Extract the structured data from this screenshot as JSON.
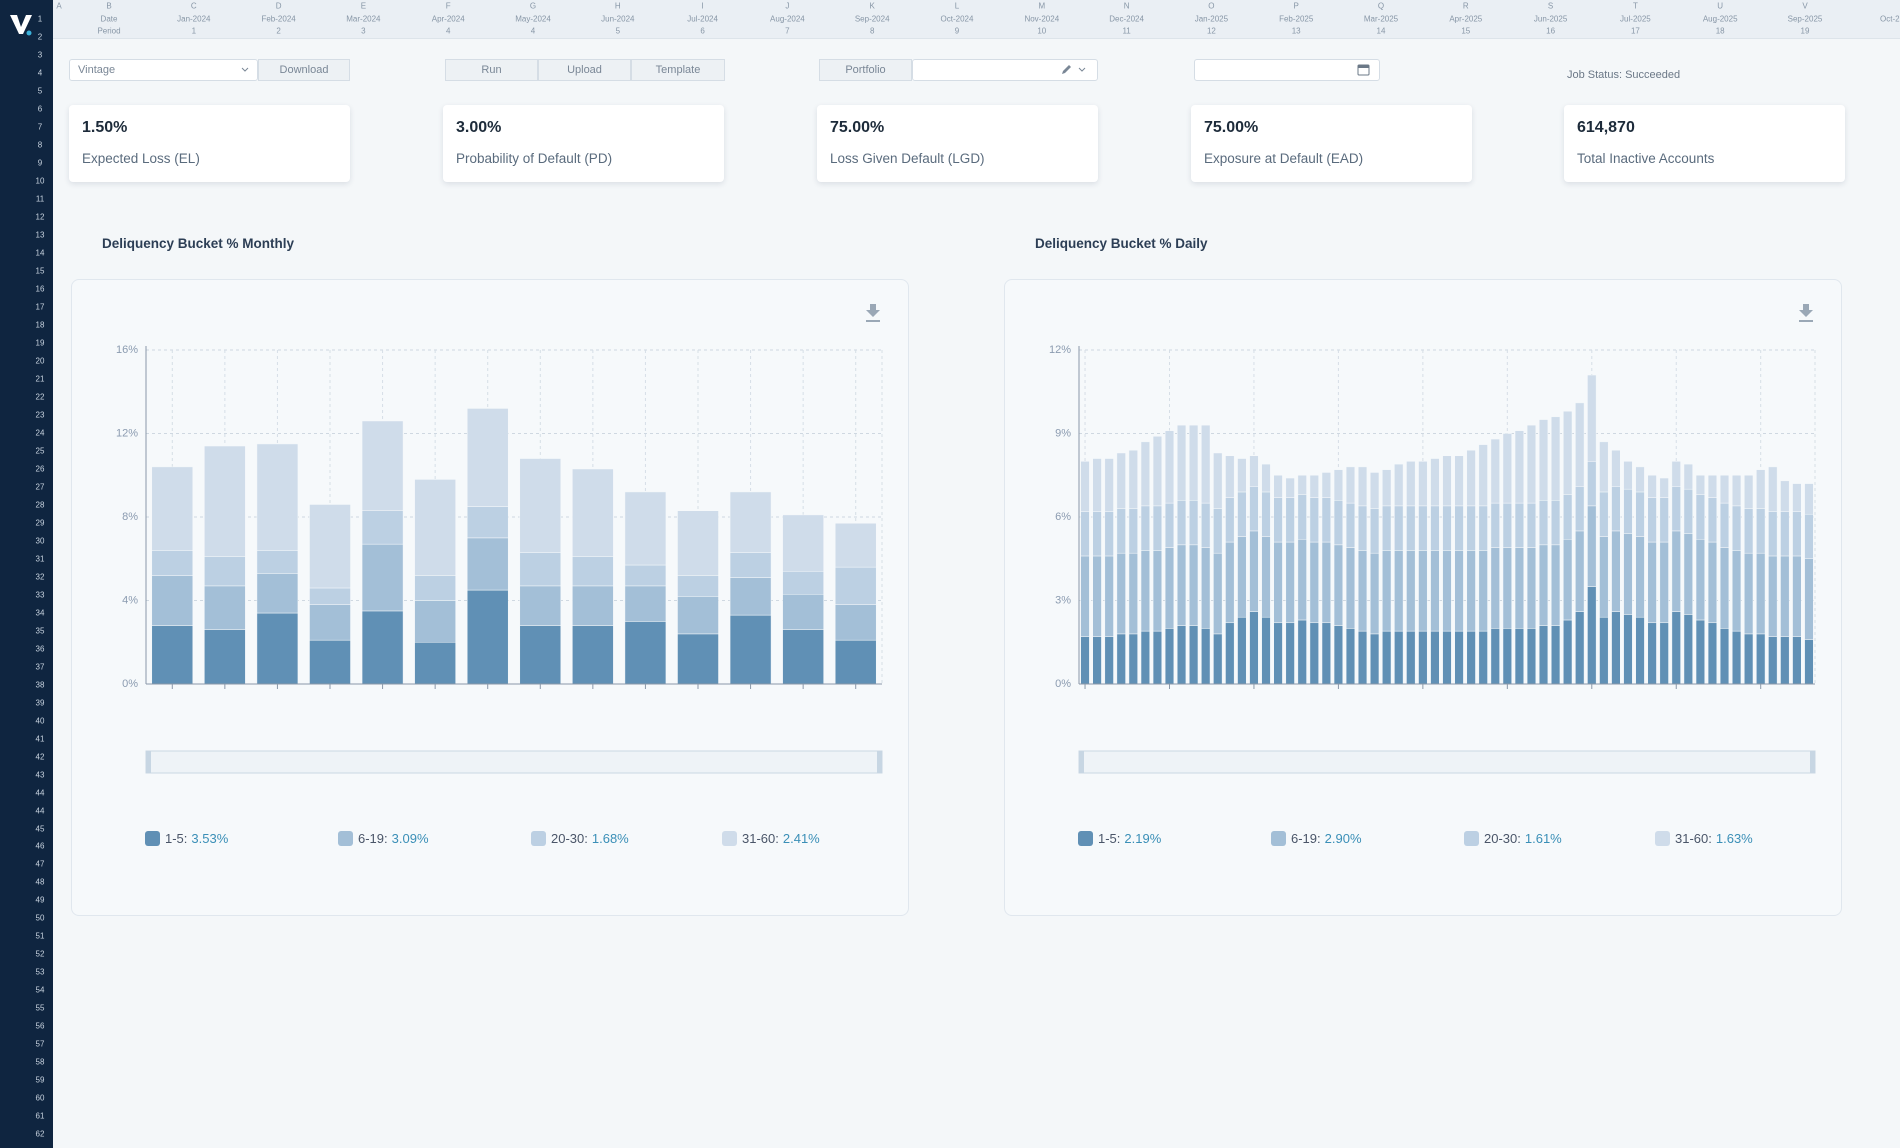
{
  "sidebar": {
    "row_numbers": [
      1,
      2,
      3,
      4,
      5,
      6,
      7,
      8,
      9,
      10,
      11,
      12,
      13,
      14,
      15,
      16,
      17,
      18,
      19,
      20,
      21,
      22,
      23,
      24,
      25,
      26,
      27,
      28,
      29,
      30,
      31,
      32,
      33,
      34,
      35,
      36,
      37,
      38,
      39,
      40,
      41,
      42,
      43,
      44,
      44,
      45,
      46,
      47,
      48,
      49,
      50,
      51,
      52,
      53,
      54,
      55,
      56,
      57,
      58,
      59,
      60,
      61,
      62
    ]
  },
  "sheet": {
    "column_letters": [
      "A",
      "B",
      "C",
      "D",
      "E",
      "F",
      "G",
      "H",
      "I",
      "J",
      "K",
      "L",
      "M",
      "N",
      "O",
      "P",
      "Q",
      "R",
      "S",
      "T",
      "U",
      "V"
    ],
    "row1": [
      "Date",
      "Jan-2024",
      "Feb-2024",
      "Mar-2024",
      "Apr-2024",
      "May-2024",
      "Jun-2024",
      "Jul-2024",
      "Aug-2024",
      "Sep-2024",
      "Oct-2024",
      "Nov-2024",
      "Dec-2024",
      "Jan-2025",
      "Feb-2025",
      "Mar-2025",
      "Apr-2025",
      "Jun-2025",
      "Jul-2025",
      "Aug-2025",
      "Sep-2025",
      "Oct-2"
    ],
    "row2": [
      "Period",
      1,
      2,
      3,
      4,
      4,
      5,
      6,
      7,
      8,
      9,
      10,
      11,
      12,
      13,
      14,
      15,
      16,
      17,
      18,
      19
    ]
  },
  "toolbar": {
    "vintage": "Vintage",
    "download": "Download",
    "run": "Run",
    "upload": "Upload",
    "template": "Template",
    "portfolio": "Portfolio",
    "job_status": "Job Status: Succeeded"
  },
  "kpis": [
    {
      "value": "1.50%",
      "label": "Expected Loss (EL)"
    },
    {
      "value": "3.00%",
      "label": "Probability of Default (PD)"
    },
    {
      "value": "75.00%",
      "label": "Loss Given Default (LGD)"
    },
    {
      "value": "75.00%",
      "label": "Exposure at Default (EAD)"
    },
    {
      "value": "614,870",
      "label": "Total Inactive Accounts"
    }
  ],
  "chart_data": [
    {
      "type": "stacked_bar",
      "title": "Deliquency Bucket % Monthly",
      "grid": true,
      "ylim": [
        0,
        16
      ],
      "yticks": [
        {
          "value": 0,
          "label": "0%"
        },
        {
          "value": 4,
          "label": "4%"
        },
        {
          "value": 8,
          "label": "8%"
        },
        {
          "value": 12,
          "label": "12%"
        },
        {
          "value": 16,
          "label": "16%"
        }
      ],
      "series": [
        {
          "name": "1-5",
          "color": "#6090b5",
          "summary": "3.53%",
          "values": [
            2.8,
            2.6,
            3.4,
            2.1,
            3.5,
            2.0,
            4.5,
            2.8,
            2.8,
            3.0,
            2.4,
            3.3,
            2.6,
            2.1
          ]
        },
        {
          "name": "6-19",
          "color": "#a3bfd7",
          "summary": "3.09%",
          "values": [
            2.4,
            2.1,
            1.9,
            1.7,
            3.2,
            2.0,
            2.5,
            1.9,
            1.9,
            1.7,
            1.8,
            1.8,
            1.7,
            1.7
          ]
        },
        {
          "name": "20-30",
          "color": "#bcd0e3",
          "summary": "1.68%",
          "values": [
            1.2,
            1.4,
            1.1,
            0.8,
            1.6,
            1.2,
            1.5,
            1.6,
            1.4,
            1.0,
            1.0,
            1.2,
            1.1,
            1.8
          ]
        },
        {
          "name": "31-60",
          "color": "#cfdcea",
          "summary": "2.41%",
          "values": [
            4.0,
            5.3,
            5.1,
            4.0,
            4.3,
            4.6,
            4.7,
            4.5,
            4.2,
            3.5,
            3.1,
            2.9,
            2.7,
            2.1
          ]
        }
      ]
    },
    {
      "type": "stacked_bar",
      "title": "Deliquency Bucket % Daily",
      "grid": true,
      "ylim": [
        0,
        12
      ],
      "yticks": [
        {
          "value": 0,
          "label": "0%"
        },
        {
          "value": 3,
          "label": "3%"
        },
        {
          "value": 6,
          "label": "6%"
        },
        {
          "value": 9,
          "label": "9%"
        },
        {
          "value": 12,
          "label": "12%"
        }
      ],
      "series": [
        {
          "name": "1-5",
          "color": "#6090b5",
          "summary": "2.19%",
          "values": [
            1.7,
            1.7,
            1.7,
            1.8,
            1.8,
            1.9,
            1.9,
            2.0,
            2.1,
            2.1,
            2.0,
            1.8,
            2.2,
            2.4,
            2.6,
            2.4,
            2.2,
            2.2,
            2.3,
            2.2,
            2.2,
            2.1,
            2.0,
            1.9,
            1.8,
            1.9,
            1.9,
            1.9,
            1.9,
            1.9,
            1.9,
            1.9,
            1.9,
            1.9,
            2.0,
            2.0,
            2.0,
            2.0,
            2.1,
            2.1,
            2.3,
            2.6,
            3.5,
            2.4,
            2.6,
            2.5,
            2.4,
            2.2,
            2.2,
            2.6,
            2.5,
            2.3,
            2.2,
            2.0,
            1.9,
            1.8,
            1.8,
            1.7,
            1.7,
            1.7,
            1.6
          ]
        },
        {
          "name": "6-19",
          "color": "#a3bfd7",
          "summary": "2.90%",
          "values": [
            2.9,
            2.9,
            2.9,
            2.9,
            2.9,
            2.9,
            2.9,
            2.9,
            2.9,
            2.9,
            2.9,
            2.9,
            2.9,
            2.9,
            2.9,
            2.9,
            2.9,
            2.9,
            2.9,
            2.9,
            2.9,
            2.9,
            2.9,
            2.9,
            2.9,
            2.9,
            2.9,
            2.9,
            2.9,
            2.9,
            2.9,
            2.9,
            2.9,
            2.9,
            2.9,
            2.9,
            2.9,
            2.9,
            2.9,
            2.9,
            2.9,
            2.9,
            2.9,
            2.9,
            2.9,
            2.9,
            2.9,
            2.9,
            2.9,
            2.9,
            2.9,
            2.9,
            2.9,
            2.9,
            2.9,
            2.9,
            2.9,
            2.9,
            2.9,
            2.9,
            2.9
          ]
        },
        {
          "name": "20-30",
          "color": "#bcd0e3",
          "summary": "1.61%",
          "values": [
            1.6,
            1.6,
            1.6,
            1.6,
            1.6,
            1.6,
            1.6,
            1.6,
            1.6,
            1.6,
            1.6,
            1.6,
            1.6,
            1.6,
            1.6,
            1.6,
            1.6,
            1.6,
            1.6,
            1.6,
            1.6,
            1.6,
            1.6,
            1.6,
            1.6,
            1.6,
            1.6,
            1.6,
            1.6,
            1.6,
            1.6,
            1.6,
            1.6,
            1.6,
            1.6,
            1.6,
            1.6,
            1.6,
            1.6,
            1.6,
            1.6,
            1.6,
            1.6,
            1.6,
            1.6,
            1.6,
            1.6,
            1.6,
            1.6,
            1.6,
            1.6,
            1.6,
            1.6,
            1.6,
            1.6,
            1.6,
            1.6,
            1.6,
            1.6,
            1.6,
            1.6
          ]
        },
        {
          "name": "31-60",
          "color": "#cfdcea",
          "summary": "1.63%",
          "values": [
            1.8,
            1.9,
            1.9,
            2.0,
            2.1,
            2.3,
            2.5,
            2.6,
            2.7,
            2.7,
            2.8,
            2.0,
            1.5,
            1.2,
            1.1,
            1.0,
            0.8,
            0.7,
            0.7,
            0.8,
            0.9,
            1.1,
            1.3,
            1.4,
            1.3,
            1.3,
            1.5,
            1.6,
            1.6,
            1.7,
            1.8,
            1.8,
            2.0,
            2.2,
            2.3,
            2.5,
            2.6,
            2.8,
            2.9,
            3.0,
            3.0,
            3.0,
            3.1,
            1.8,
            1.3,
            1.0,
            0.9,
            0.8,
            0.7,
            0.9,
            0.9,
            0.7,
            0.8,
            1.0,
            1.1,
            1.2,
            1.4,
            1.6,
            1.1,
            1.0,
            1.1
          ]
        }
      ]
    }
  ]
}
